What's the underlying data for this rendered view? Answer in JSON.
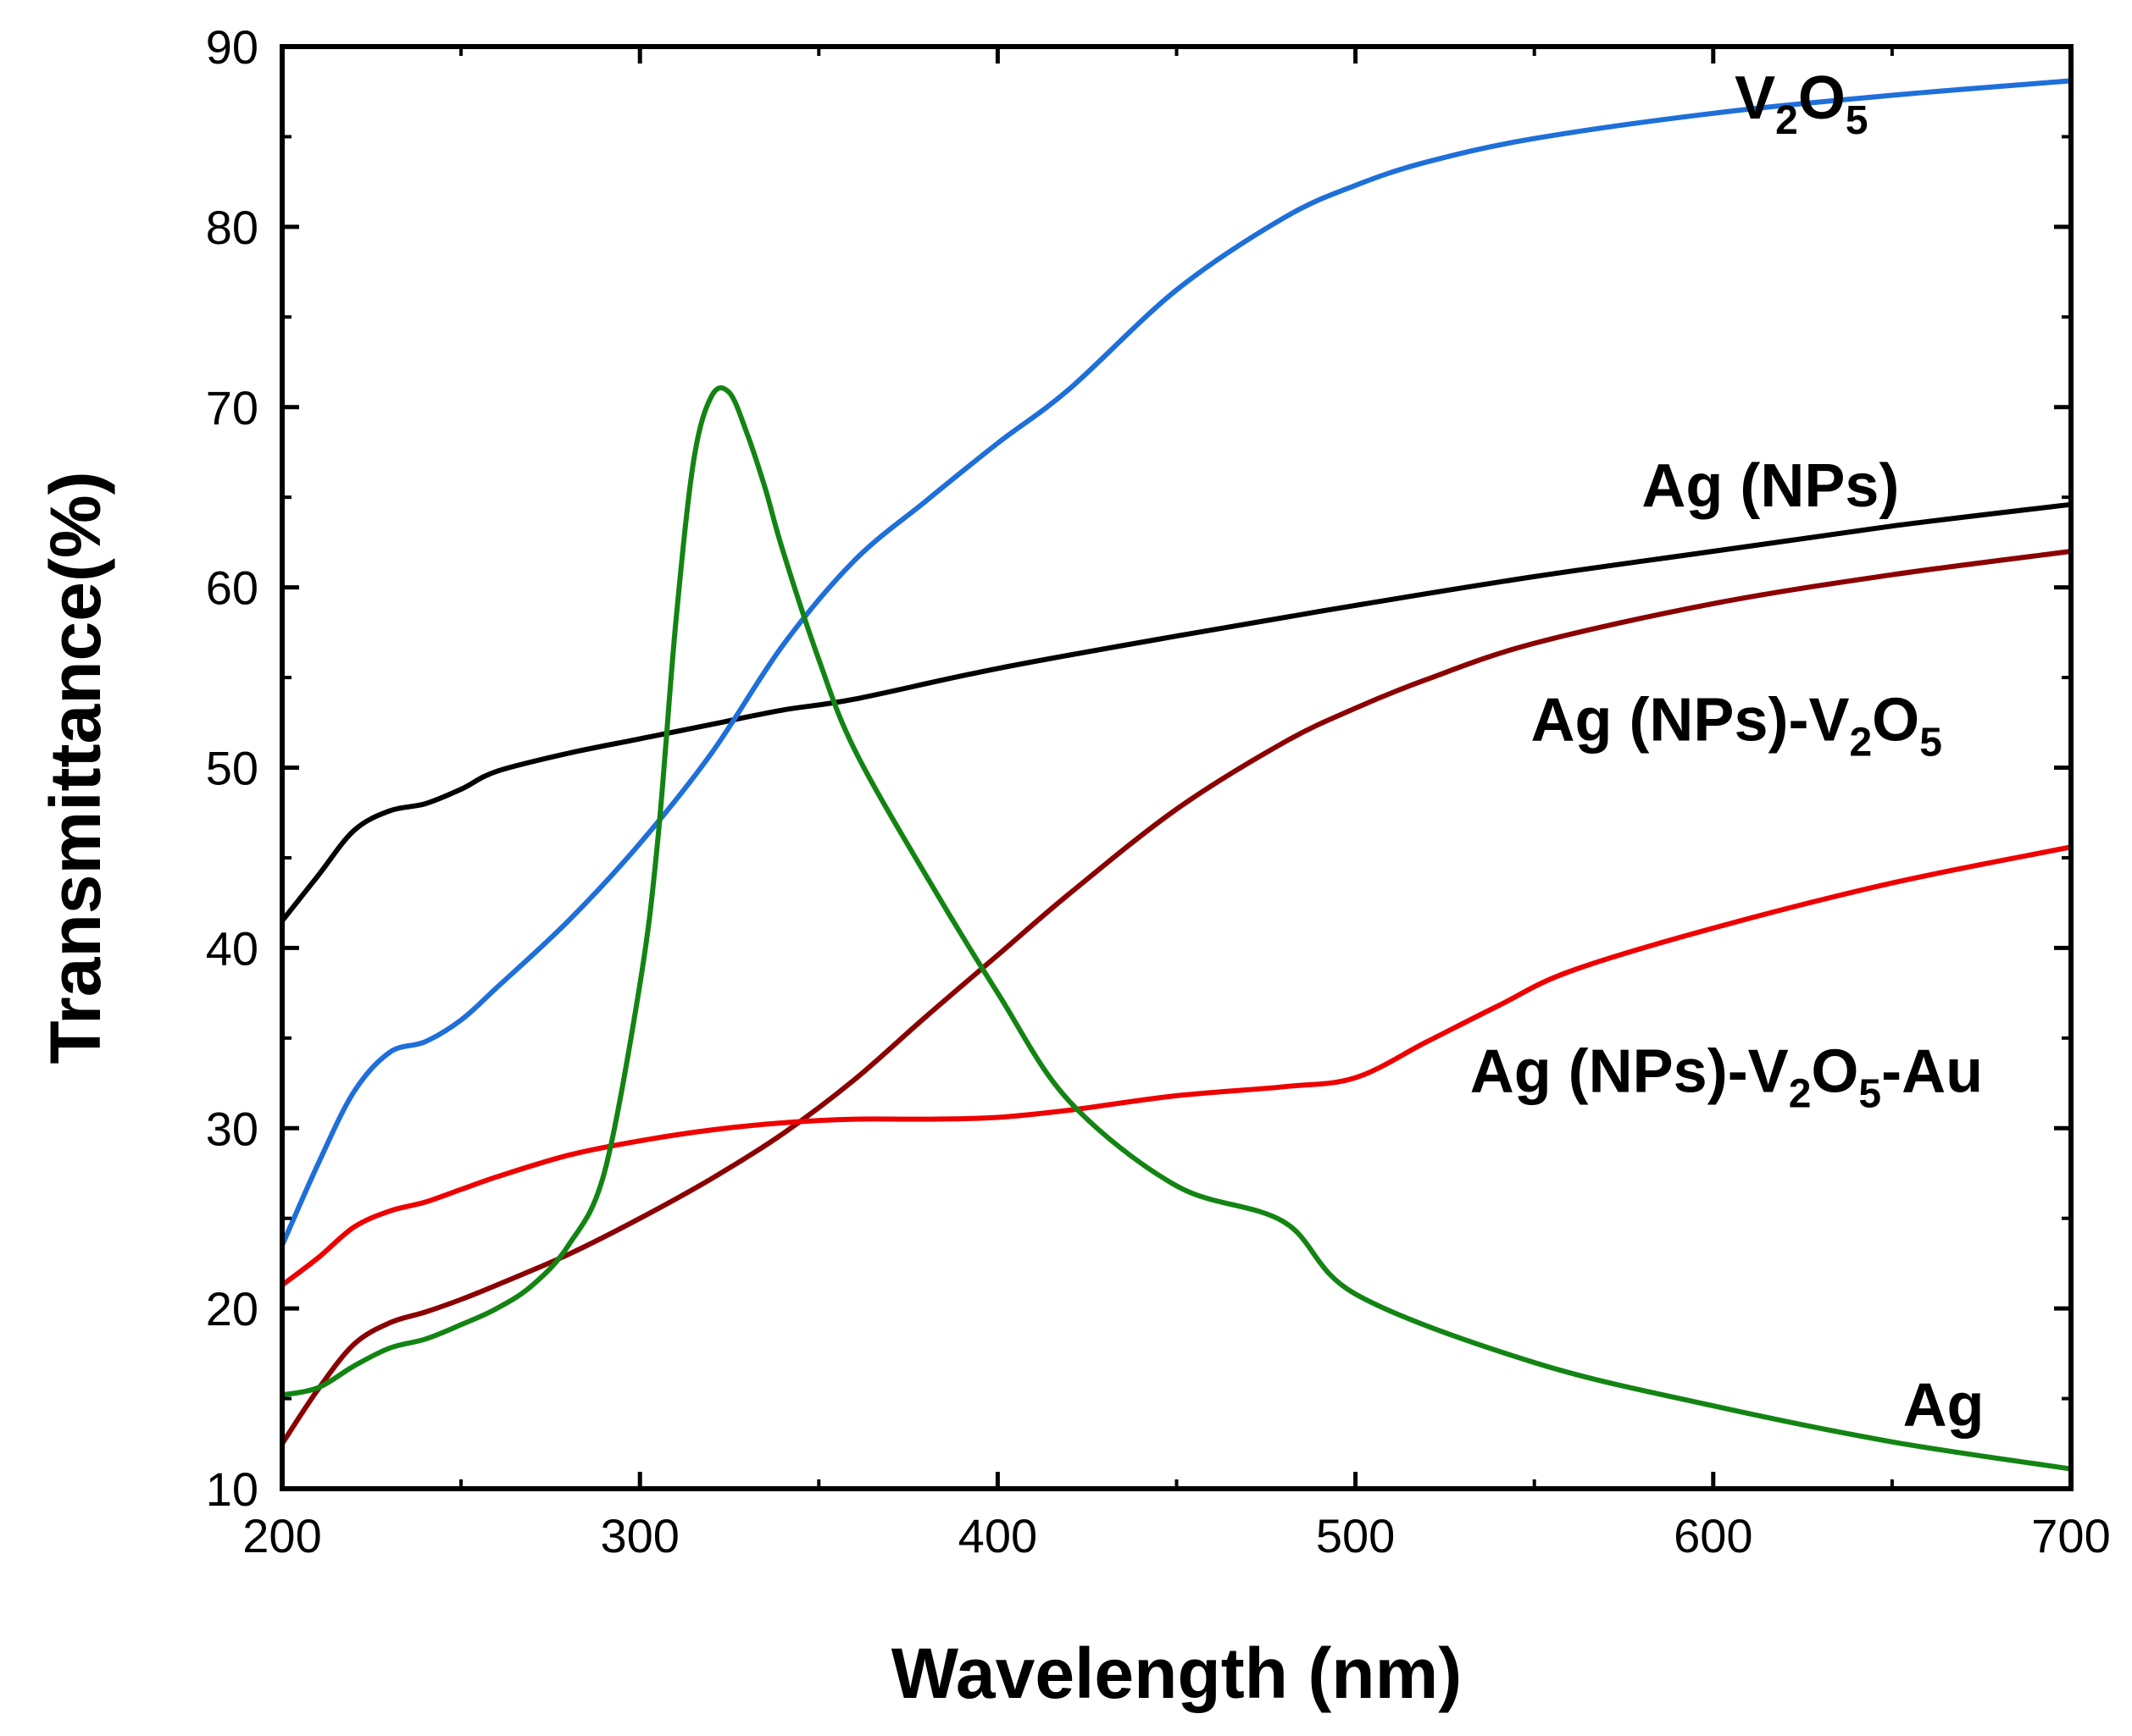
{
  "chart_data": {
    "type": "line",
    "title": "",
    "xlabel": "Wavelength (nm)",
    "ylabel": "Transmittance(%)",
    "xlim": [
      200,
      700
    ],
    "ylim": [
      10,
      90
    ],
    "x_ticks": [
      200,
      300,
      400,
      500,
      600,
      700
    ],
    "y_ticks": [
      10,
      20,
      30,
      40,
      50,
      60,
      70,
      80,
      90
    ],
    "grid": false,
    "legend": "none",
    "series": [
      {
        "name": "Ag (NPs)",
        "label_parts": [
          {
            "t": "Ag (NPs)",
            "sub": false
          }
        ],
        "label_at": [
          580,
          64.5
        ],
        "color": "#000000",
        "x": [
          200,
          210,
          220,
          230,
          240,
          250,
          260,
          280,
          300,
          320,
          340,
          360,
          400,
          450,
          500,
          550,
          600,
          650,
          700
        ],
        "y": [
          41.5,
          44,
          46.5,
          47.6,
          48,
          48.8,
          49.8,
          50.8,
          51.6,
          52.4,
          53.2,
          53.8,
          55.5,
          57.3,
          59,
          60.6,
          62,
          63.4,
          64.6
        ]
      },
      {
        "name": "V2O5",
        "label_parts": [
          {
            "t": "V",
            "sub": false
          },
          {
            "t": "2",
            "sub": true
          },
          {
            "t": "O",
            "sub": false
          },
          {
            "t": "5",
            "sub": true
          }
        ],
        "label_at": [
          606,
          86
        ],
        "color": "#1e6fd9",
        "x": [
          200,
          210,
          220,
          230,
          240,
          250,
          260,
          280,
          300,
          320,
          340,
          360,
          380,
          400,
          420,
          450,
          480,
          500,
          520,
          550,
          600,
          650,
          700
        ],
        "y": [
          23.5,
          28,
          32,
          34.2,
          34.8,
          36,
          37.8,
          41.5,
          45.8,
          50.8,
          56.8,
          61.5,
          64.8,
          68,
          71,
          76.5,
          80.5,
          82.3,
          83.6,
          84.9,
          86.3,
          87.3,
          88.1
        ]
      },
      {
        "name": "Ag (NPs)-V2O5",
        "label_parts": [
          {
            "t": "Ag (NPs)-V",
            "sub": false
          },
          {
            "t": "2",
            "sub": true
          },
          {
            "t": "O",
            "sub": false
          },
          {
            "t": "5",
            "sub": true
          }
        ],
        "label_at": [
          549,
          51.5
        ],
        "color": "#8b0000",
        "x": [
          200,
          210,
          220,
          230,
          240,
          250,
          260,
          280,
          300,
          320,
          340,
          360,
          380,
          400,
          420,
          450,
          480,
          500,
          520,
          550,
          600,
          650,
          700
        ],
        "y": [
          12.5,
          15.5,
          18,
          19.2,
          19.8,
          20.5,
          21.3,
          23,
          25,
          27.2,
          29.7,
          32.7,
          36.2,
          39.6,
          43,
          47.7,
          51.4,
          53.3,
          54.9,
          56.9,
          59.1,
          60.7,
          62
        ]
      },
      {
        "name": "Ag (NPs)-V2O5-Au",
        "label_parts": [
          {
            "t": "Ag (NPs)-V",
            "sub": false
          },
          {
            "t": "2",
            "sub": true
          },
          {
            "t": "O",
            "sub": false
          },
          {
            "t": "5",
            "sub": true
          },
          {
            "t": "-Au",
            "sub": false
          }
        ],
        "label_at": [
          532,
          32
        ],
        "color": "#ee0000",
        "x": [
          200,
          210,
          220,
          230,
          240,
          250,
          260,
          280,
          300,
          320,
          340,
          360,
          380,
          400,
          420,
          450,
          480,
          500,
          520,
          540,
          560,
          600,
          650,
          700
        ],
        "y": [
          21.3,
          22.8,
          24.5,
          25.4,
          25.9,
          26.6,
          27.3,
          28.5,
          29.3,
          29.9,
          30.3,
          30.5,
          30.5,
          30.6,
          31,
          31.8,
          32.3,
          32.8,
          34.8,
          36.8,
          38.7,
          41.1,
          43.6,
          45.6
        ]
      },
      {
        "name": "Ag",
        "label_parts": [
          {
            "t": "Ag",
            "sub": false
          }
        ],
        "label_at": [
          653,
          13.5
        ],
        "color": "#138413",
        "x": [
          200,
          210,
          220,
          230,
          240,
          250,
          260,
          270,
          280,
          290,
          300,
          305,
          310,
          315,
          320,
          325,
          330,
          335,
          340,
          350,
          360,
          380,
          400,
          420,
          450,
          480,
          500,
          550,
          600,
          650,
          700
        ],
        "y": [
          15.2,
          15.6,
          16.8,
          17.8,
          18.3,
          19.1,
          20,
          21.3,
          23.5,
          27.5,
          38,
          46,
          58,
          67,
          70.6,
          70.8,
          68.5,
          65.5,
          62,
          56,
          51,
          44,
          37.5,
          31.5,
          26.8,
          24.8,
          20.8,
          17,
          14.6,
          12.6,
          11.1
        ]
      }
    ]
  }
}
